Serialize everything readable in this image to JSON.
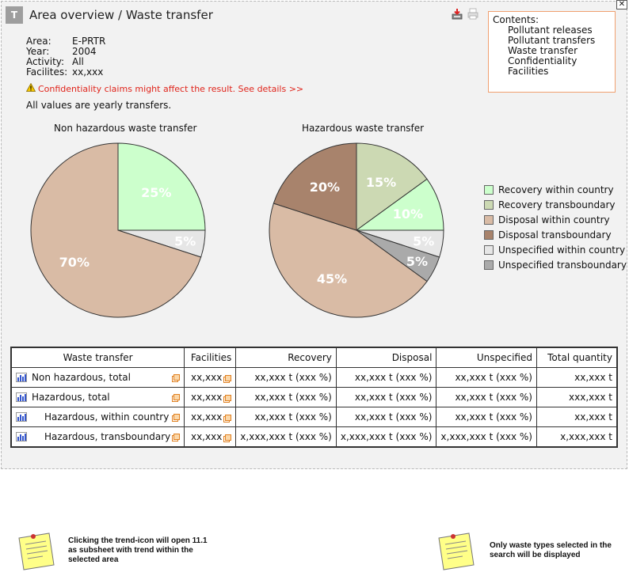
{
  "window": {
    "close_label": "✕",
    "title": "Area overview / Waste transfer",
    "badge": "T"
  },
  "toolbar": {
    "export_icon": "download-icon",
    "print_icon": "printer-icon"
  },
  "contents": {
    "heading": "Contents:",
    "items": [
      "Pollutant releases",
      "Pollutant transfers",
      "Waste transfer",
      "Confidentiality",
      "Facilities"
    ]
  },
  "meta": [
    {
      "key": "Area:",
      "value": "E-PRTR"
    },
    {
      "key": "Year:",
      "value": "2004"
    },
    {
      "key": "Activity:",
      "value": "All"
    },
    {
      "key": "Facilites:",
      "value": "xx,xxx"
    }
  ],
  "warning": "Confidentiality claims might affect the result. See details >>",
  "yearly_note": "All values are yearly transfers.",
  "colors": {
    "recovery_within": "#ccffcc",
    "recovery_trans": "#ccd9b3",
    "disposal_within": "#d9bba5",
    "disposal_trans": "#a8836c",
    "unspecified_within": "#e6e6e6",
    "unspecified_trans": "#aaaaaa"
  },
  "chart_data": [
    {
      "type": "pie",
      "title": "Non hazardous waste transfer",
      "slices": [
        {
          "label": "Recovery within country",
          "value": 25,
          "text": "25%"
        },
        {
          "label": "Unspecified within country",
          "value": 5,
          "text": "5%"
        },
        {
          "label": "Disposal within country",
          "value": 70,
          "text": "70%"
        }
      ]
    },
    {
      "type": "pie",
      "title": "Hazardous waste transfer",
      "slices": [
        {
          "label": "Recovery transboundary",
          "value": 15,
          "text": "15%"
        },
        {
          "label": "Recovery within country",
          "value": 10,
          "text": "10%"
        },
        {
          "label": "Unspecified within country",
          "value": 5,
          "text": "5%"
        },
        {
          "label": "Unspecified transboundary",
          "value": 5,
          "text": "5%"
        },
        {
          "label": "Disposal within country",
          "value": 45,
          "text": "45%"
        },
        {
          "label": "Disposal transboundary",
          "value": 20,
          "text": "20%"
        }
      ]
    }
  ],
  "legend": [
    {
      "label": "Recovery within country",
      "color": "#ccffcc"
    },
    {
      "label": "Recovery transboundary",
      "color": "#ccd9b3"
    },
    {
      "label": "Disposal within country",
      "color": "#d9bba5"
    },
    {
      "label": "Disposal transboundary",
      "color": "#a8836c"
    },
    {
      "label": "Unspecified within country",
      "color": "#e6e6e6"
    },
    {
      "label": "Unspecified transboundary",
      "color": "#aaaaaa"
    }
  ],
  "table": {
    "headers": [
      "Waste transfer",
      "Facilities",
      "Recovery",
      "Disposal",
      "Unspecified",
      "Total quantity"
    ],
    "rows": [
      {
        "label": "Non hazardous, total",
        "indent": false,
        "facilities": "xx,xxx",
        "recovery": "xx,xxx t (xxx %)",
        "disposal": "xx,xxx t (xxx %)",
        "unspecified": "xx,xxx t (xxx %)",
        "total": "xx,xxx t"
      },
      {
        "label": "Hazardous, total",
        "indent": false,
        "facilities": "xx,xxx",
        "recovery": "xx,xxx t (xxx %)",
        "disposal": "xx,xxx t (xxx %)",
        "unspecified": "xx,xxx t (xxx %)",
        "total": "xxx,xxx t"
      },
      {
        "label": "Hazardous, within country",
        "indent": true,
        "facilities": "xx,xxx",
        "recovery": "xx,xxx t (xxx %)",
        "disposal": "xx,xxx t (xxx %)",
        "unspecified": "xx,xxx t (xxx %)",
        "total": "xx,xxx t"
      },
      {
        "label": "Hazardous, transboundary",
        "indent": true,
        "facilities": "xx,xxx",
        "recovery": "x,xxx,xxx t (xxx %)",
        "disposal": "x,xxx,xxx t (xxx %)",
        "unspecified": "x,xxx,xxx t (xxx %)",
        "total": "x,xxx,xxx t"
      }
    ]
  },
  "notes": [
    {
      "text": "Clicking the trend-icon will open 11.1 as subsheet with trend within the selected area"
    },
    {
      "text": "Only waste types selected in the search will be displayed"
    }
  ]
}
